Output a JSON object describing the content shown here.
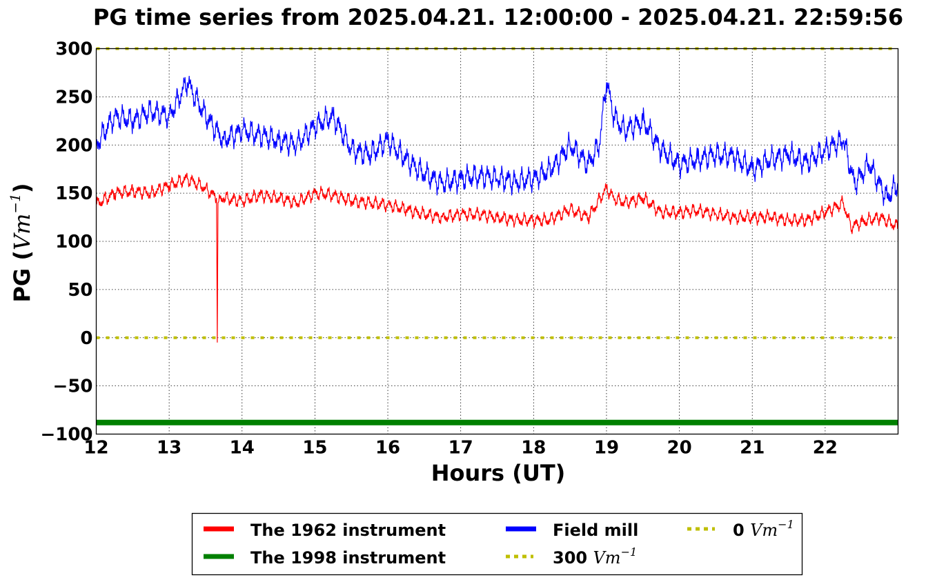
{
  "chart_data": {
    "type": "line",
    "title": "PG time series from 2025.04.21. 12:00:00 - 2025.04.21. 22:59:56",
    "xlabel": "Hours (UT)",
    "ylabel": "PG (",
    "ylabel_unit": "Vm",
    "ylabel_exp": "−1",
    "ylabel_close": ")",
    "xlim": [
      12,
      23
    ],
    "ylim": [
      -100,
      300
    ],
    "xticks": [
      "12",
      "13",
      "14",
      "15",
      "16",
      "17",
      "18",
      "19",
      "20",
      "21",
      "22"
    ],
    "yticks": [
      "300",
      "250",
      "200",
      "150",
      "100",
      "50",
      "0",
      "−50",
      "−100"
    ],
    "grid": true,
    "legend_position": "bottom-center",
    "series": [
      {
        "name": "The 1962 instrument",
        "color": "#ff0000",
        "x": [
          12.0,
          12.25,
          12.5,
          12.75,
          13.0,
          13.25,
          13.5,
          13.65,
          13.66,
          13.67,
          13.75,
          14.0,
          14.25,
          14.5,
          14.75,
          15.0,
          15.25,
          15.5,
          15.75,
          16.0,
          16.25,
          16.5,
          16.75,
          17.0,
          17.25,
          17.5,
          17.75,
          18.0,
          18.2,
          18.5,
          18.75,
          19.0,
          19.1,
          19.25,
          19.5,
          19.75,
          20.0,
          20.25,
          20.5,
          20.75,
          21.0,
          21.25,
          21.5,
          21.75,
          22.0,
          22.25,
          22.35,
          22.5,
          22.75,
          23.0
        ],
        "values": [
          138,
          150,
          152,
          150,
          158,
          165,
          155,
          145,
          -5,
          140,
          145,
          142,
          148,
          145,
          140,
          150,
          148,
          142,
          140,
          138,
          133,
          128,
          125,
          128,
          128,
          125,
          122,
          122,
          122,
          133,
          125,
          155,
          145,
          140,
          145,
          130,
          130,
          132,
          128,
          125,
          125,
          125,
          122,
          122,
          130,
          140,
          115,
          120,
          125,
          115
        ]
      },
      {
        "name": "The 1998 instrument",
        "color": "#008000",
        "x": [
          12.0,
          23.0
        ],
        "values": [
          -88,
          -88
        ]
      },
      {
        "name": "Field mill",
        "color": "#0000ff",
        "x": [
          12.0,
          12.25,
          12.5,
          12.75,
          13.0,
          13.25,
          13.5,
          13.75,
          14.0,
          14.25,
          14.5,
          14.75,
          15.0,
          15.25,
          15.5,
          15.75,
          16.0,
          16.25,
          16.5,
          16.75,
          17.0,
          17.25,
          17.5,
          17.75,
          18.0,
          18.25,
          18.5,
          18.75,
          18.9,
          19.0,
          19.1,
          19.25,
          19.5,
          19.75,
          20.0,
          20.25,
          20.5,
          20.75,
          21.0,
          21.25,
          21.5,
          21.75,
          22.0,
          22.25,
          22.4,
          22.6,
          22.85,
          23.0
        ],
        "values": [
          200,
          230,
          225,
          235,
          230,
          265,
          230,
          205,
          215,
          210,
          205,
          200,
          220,
          230,
          195,
          190,
          205,
          185,
          170,
          160,
          165,
          168,
          165,
          162,
          165,
          175,
          200,
          180,
          200,
          265,
          230,
          215,
          225,
          195,
          180,
          185,
          190,
          188,
          175,
          185,
          190,
          182,
          195,
          205,
          160,
          180,
          145,
          160
        ]
      },
      {
        "name": "300",
        "name_unit": "Vm",
        "name_exp": "−1",
        "color": "#bfbf00",
        "dashed": true,
        "x": [
          12.0,
          23.0
        ],
        "values": [
          300,
          300
        ]
      },
      {
        "name": "0",
        "name_unit": "Vm",
        "name_exp": "−1",
        "color": "#bfbf00",
        "dashed": true,
        "x": [
          12.0,
          23.0
        ],
        "values": [
          0,
          0
        ]
      }
    ]
  }
}
